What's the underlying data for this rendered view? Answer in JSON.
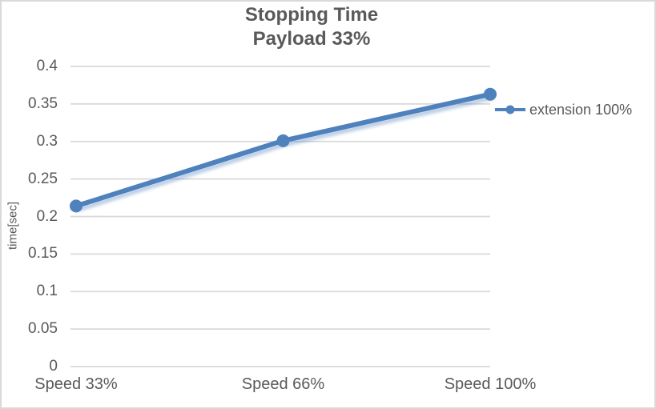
{
  "chart": {
    "title_line1": "Stopping Time",
    "title_line2": "Payload 33%"
  },
  "chart_data": {
    "type": "line",
    "title": "Stopping Time",
    "subtitle": "Payload 33%",
    "categories": [
      "Speed 33%",
      "Speed 66%",
      "Speed 100%"
    ],
    "series": [
      {
        "name": "extension 100%",
        "values": [
          0.214,
          0.301,
          0.363
        ]
      }
    ],
    "xlabel": "",
    "ylabel": "time[sec]",
    "ylim": [
      0,
      0.4
    ],
    "ytick_step": 0.05,
    "ytick_labels": [
      "0",
      "0.05",
      "0.1",
      "0.15",
      "0.2",
      "0.25",
      "0.3",
      "0.35",
      "0.4"
    ],
    "grid": true,
    "legend_position": "right",
    "marker": "circle",
    "colors": {
      "series": "#4F81BD",
      "series_shadow": "rgba(79,129,189,0.38)",
      "gridline": "#D9D9D9",
      "text": "#595959",
      "border": "#D9D9D9"
    }
  }
}
